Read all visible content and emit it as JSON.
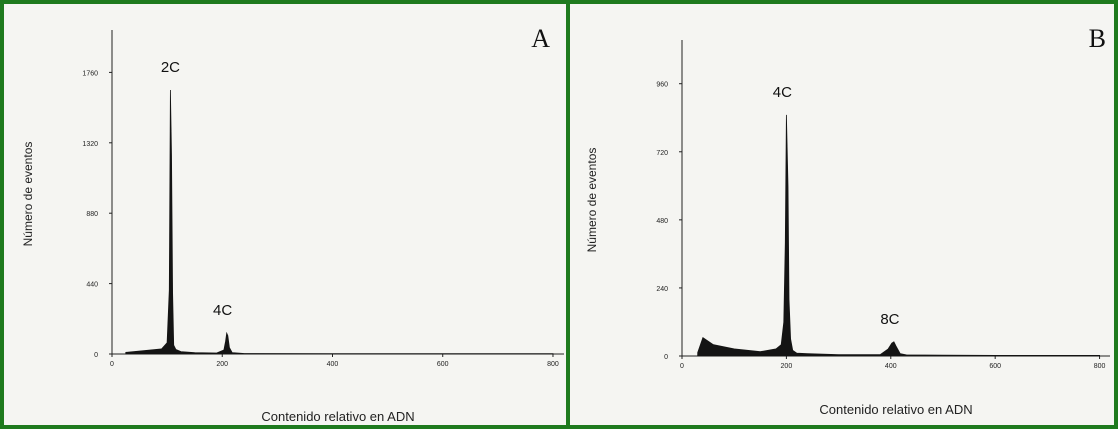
{
  "chart_data": [
    {
      "type": "area",
      "panel_letter": "A",
      "ylabel": "Número de eventos",
      "xlabel": "Contenido relativo en ADN",
      "xlim": [
        0,
        820
      ],
      "ylim": [
        0,
        2000
      ],
      "xticks": [
        "0",
        "200",
        "400",
        "600",
        "800"
      ],
      "yticks": [
        "0",
        "440",
        "880",
        "1320",
        "1760"
      ],
      "x": [
        25,
        60,
        90,
        100,
        104,
        106,
        108,
        110,
        112,
        116,
        125,
        150,
        190,
        203,
        206,
        208,
        210,
        213,
        218,
        240,
        400,
        600,
        800
      ],
      "y": [
        10,
        22,
        32,
        70,
        400,
        1650,
        1250,
        380,
        55,
        28,
        15,
        8,
        6,
        25,
        80,
        130,
        115,
        40,
        8,
        3,
        2,
        2,
        2
      ],
      "annotations": [
        {
          "text": "2C",
          "x": 106,
          "y": 1650
        },
        {
          "text": "4C",
          "x": 208,
          "y": 130
        }
      ]
    },
    {
      "type": "area",
      "panel_letter": "B",
      "ylabel": "Número de eventos",
      "xlabel": "Contenido relativo en ADN",
      "xlim": [
        0,
        820
      ],
      "ylim": [
        0,
        1100
      ],
      "xticks": [
        "0",
        "200",
        "400",
        "600",
        "800"
      ],
      "yticks": [
        "0",
        "240",
        "480",
        "720",
        "960"
      ],
      "x": [
        30,
        40,
        60,
        100,
        150,
        180,
        190,
        195,
        198,
        200,
        203,
        205,
        208,
        212,
        220,
        240,
        300,
        380,
        395,
        402,
        406,
        410,
        418,
        430,
        500,
        600,
        800
      ],
      "y": [
        12,
        65,
        40,
        25,
        15,
        25,
        40,
        120,
        400,
        850,
        600,
        200,
        60,
        20,
        10,
        8,
        5,
        5,
        25,
        45,
        50,
        35,
        8,
        4,
        3,
        2,
        2
      ],
      "annotations": [
        {
          "text": "4C",
          "x": 200,
          "y": 850
        },
        {
          "text": "8C",
          "x": 406,
          "y": 50
        }
      ]
    }
  ]
}
